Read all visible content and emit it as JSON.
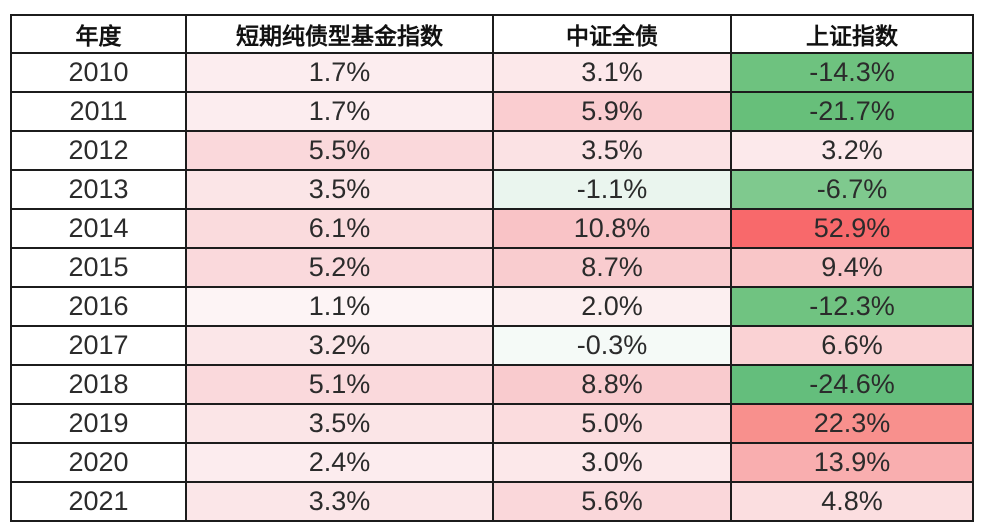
{
  "table": {
    "headers": [
      "年度",
      "短期纯债型基金指数",
      "中证全债",
      "上证指数"
    ],
    "rows": [
      {
        "year": "2010",
        "cells": [
          {
            "text": "1.7%",
            "bg": "#FCEDEF"
          },
          {
            "text": "3.1%",
            "bg": "#FCE8EA"
          },
          {
            "text": "-14.3%",
            "bg": "#6EC27F"
          }
        ]
      },
      {
        "year": "2011",
        "cells": [
          {
            "text": "1.7%",
            "bg": "#FCEDEF"
          },
          {
            "text": "5.9%",
            "bg": "#FACDD0"
          },
          {
            "text": "-21.7%",
            "bg": "#67BF7A"
          }
        ]
      },
      {
        "year": "2012",
        "cells": [
          {
            "text": "5.5%",
            "bg": "#FAD8DB"
          },
          {
            "text": "3.5%",
            "bg": "#FBE2E4"
          },
          {
            "text": "3.2%",
            "bg": "#FCE9EB"
          }
        ]
      },
      {
        "year": "2013",
        "cells": [
          {
            "text": "3.5%",
            "bg": "#FBE5E7"
          },
          {
            "text": "-1.1%",
            "bg": "#EAF5EE"
          },
          {
            "text": "-6.7%",
            "bg": "#7FC98E"
          }
        ]
      },
      {
        "year": "2014",
        "cells": [
          {
            "text": "6.1%",
            "bg": "#FADBDD"
          },
          {
            "text": "10.8%",
            "bg": "#F9C3C6"
          },
          {
            "text": "52.9%",
            "bg": "#F8696B"
          }
        ]
      },
      {
        "year": "2015",
        "cells": [
          {
            "text": "5.2%",
            "bg": "#FAD9DC"
          },
          {
            "text": "8.7%",
            "bg": "#F9CCCF"
          },
          {
            "text": "9.4%",
            "bg": "#F9C6C8"
          }
        ]
      },
      {
        "year": "2016",
        "cells": [
          {
            "text": "1.1%",
            "bg": "#FDF4F5"
          },
          {
            "text": "2.0%",
            "bg": "#FCEFF0"
          },
          {
            "text": "-12.3%",
            "bg": "#70C381"
          }
        ]
      },
      {
        "year": "2017",
        "cells": [
          {
            "text": "3.2%",
            "bg": "#FBE6E8"
          },
          {
            "text": "-0.3%",
            "bg": "#F5FAF7"
          },
          {
            "text": "6.6%",
            "bg": "#FAD2D4"
          }
        ]
      },
      {
        "year": "2018",
        "cells": [
          {
            "text": "5.1%",
            "bg": "#FAD9DC"
          },
          {
            "text": "8.8%",
            "bg": "#F9CBCE"
          },
          {
            "text": "-24.6%",
            "bg": "#64BE7C"
          }
        ]
      },
      {
        "year": "2019",
        "cells": [
          {
            "text": "3.5%",
            "bg": "#FBE5E7"
          },
          {
            "text": "5.0%",
            "bg": "#FBDCDE"
          },
          {
            "text": "22.3%",
            "bg": "#F8908D"
          }
        ]
      },
      {
        "year": "2020",
        "cells": [
          {
            "text": "2.4%",
            "bg": "#FCECEE"
          },
          {
            "text": "3.0%",
            "bg": "#FCE8EA"
          },
          {
            "text": "13.9%",
            "bg": "#F9AEAF"
          }
        ]
      },
      {
        "year": "2021",
        "cells": [
          {
            "text": "3.3%",
            "bg": "#FBE6E8"
          },
          {
            "text": "5.6%",
            "bg": "#FAD7DA"
          },
          {
            "text": "4.8%",
            "bg": "#FBDEE0"
          }
        ]
      }
    ]
  },
  "chart_data": {
    "type": "table",
    "title": "",
    "categories": [
      "2010",
      "2011",
      "2012",
      "2013",
      "2014",
      "2015",
      "2016",
      "2017",
      "2018",
      "2019",
      "2020",
      "2021"
    ],
    "series": [
      {
        "name": "短期纯债型基金指数",
        "values": [
          1.7,
          1.7,
          5.5,
          3.5,
          6.1,
          5.2,
          1.1,
          3.2,
          5.1,
          3.5,
          2.4,
          3.3
        ]
      },
      {
        "name": "中证全债",
        "values": [
          3.1,
          5.9,
          3.5,
          -1.1,
          10.8,
          8.7,
          2.0,
          -0.3,
          8.8,
          5.0,
          3.0,
          5.6
        ]
      },
      {
        "name": "上证指数",
        "values": [
          -14.3,
          -21.7,
          3.2,
          -6.7,
          52.9,
          9.4,
          -12.3,
          6.6,
          -24.6,
          22.3,
          13.9,
          4.8
        ]
      }
    ],
    "units": "%",
    "xlabel": "年度",
    "heatmap": {
      "style": "red-positive-green-negative color scale per cell",
      "max_positive_color": "#F8696B",
      "min_negative_color": "#63BE7B",
      "neutral_color": "#FCFCFF"
    }
  },
  "colors": {
    "border": "#1c1c1c",
    "header_text": "#111111",
    "cell_text": "#2b2b2b",
    "background": "#ffffff"
  }
}
